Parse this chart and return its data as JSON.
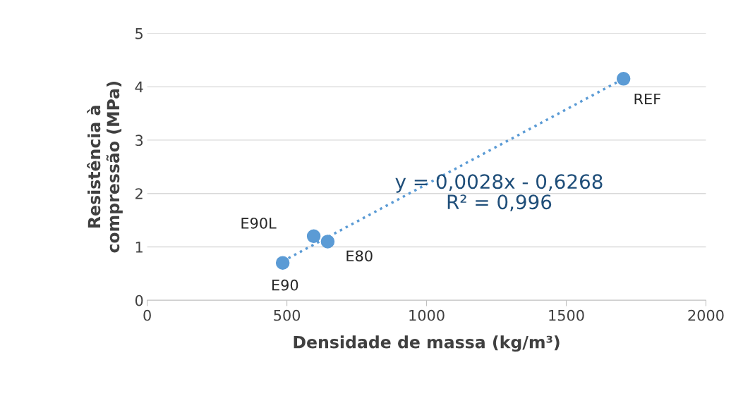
{
  "chart_data": {
    "type": "scatter",
    "xlabel": "Densidade de massa (kg/m³)",
    "ylabel": "Resistência à\ncompressão (MPa)",
    "xlim": [
      0,
      2000
    ],
    "xticks": [
      0,
      500,
      1000,
      1500,
      2000
    ],
    "ylim": [
      0,
      5
    ],
    "yticks": [
      0,
      1,
      2,
      3,
      4,
      5
    ],
    "grid": "y",
    "series": [
      {
        "marker": "circle",
        "color": "#5b9bd5",
        "x": [
          1705,
          485,
          596,
          646
        ],
        "values": [
          4.15,
          0.7,
          1.2,
          1.1
        ]
      },
      {
        "type": "line",
        "color": "#5b9bd5",
        "line_style": "dotted",
        "marker": "none",
        "x": [
          485,
          1705
        ],
        "values": [
          0.73,
          4.15
        ]
      }
    ],
    "annotations": [
      {
        "text": "REF",
        "x": 1705,
        "y": 4.15
      },
      {
        "text": "E90",
        "x": 485,
        "y": 0.7
      },
      {
        "text": "E90L",
        "x": 596,
        "y": 1.2
      },
      {
        "text": "E80",
        "x": 646,
        "y": 1.1
      },
      "y = 0,0028x - 0,6268\nR² = 0,996"
    ]
  }
}
